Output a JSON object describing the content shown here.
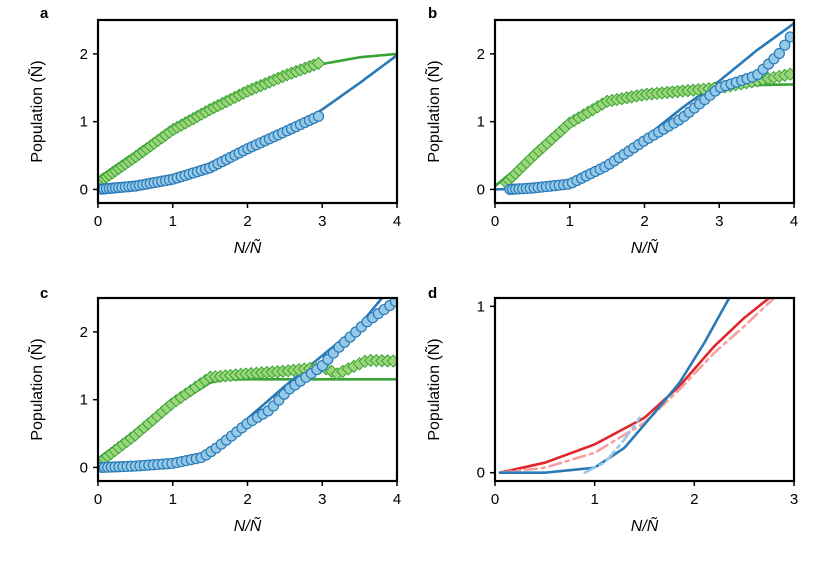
{
  "colors": {
    "blue": "#2a7ab7",
    "blue_marker_fill": "#95c9e8",
    "green": "#3aa336",
    "green_marker_fill": "#9cd67a",
    "red": "#e0272c",
    "red_light": "#f4a19f",
    "blue_light": "#9cc8e7"
  },
  "chart_data": [
    {
      "panel": "a",
      "type": "scatter",
      "xlabel": "N/Ñ",
      "ylabel": "Population (Ñ)",
      "xlim": [
        0,
        4
      ],
      "ylim": [
        -0.2,
        2.5
      ],
      "xticks": [
        "0",
        "1",
        "2",
        "3",
        "4"
      ],
      "yticks": [
        "0",
        "1",
        "2"
      ],
      "series": [
        {
          "kind": "line",
          "color": "green",
          "points": [
            [
              0.0,
              0.05
            ],
            [
              0.5,
              0.45
            ],
            [
              1.0,
              0.85
            ],
            [
              1.5,
              1.22
            ],
            [
              2.0,
              1.5
            ],
            [
              2.5,
              1.7
            ],
            [
              3.0,
              1.85
            ],
            [
              3.5,
              1.95
            ],
            [
              4.0,
              2.0
            ]
          ]
        },
        {
          "kind": "line",
          "color": "blue",
          "points": [
            [
              0.0,
              0.0
            ],
            [
              0.5,
              0.05
            ],
            [
              1.0,
              0.15
            ],
            [
              1.5,
              0.32
            ],
            [
              2.0,
              0.55
            ],
            [
              2.5,
              0.82
            ],
            [
              3.0,
              1.18
            ],
            [
              3.5,
              1.57
            ],
            [
              4.0,
              1.98
            ]
          ]
        },
        {
          "kind": "markers",
          "marker": "diamond",
          "color": "green",
          "x_range": [
            0.05,
            2.95
          ],
          "count": 56,
          "values": [
            [
              0.0,
              0.1
            ],
            [
              0.5,
              0.48
            ],
            [
              1.0,
              0.88
            ],
            [
              1.5,
              1.18
            ],
            [
              2.0,
              1.45
            ],
            [
              2.5,
              1.68
            ],
            [
              2.95,
              1.86
            ]
          ]
        },
        {
          "kind": "markers",
          "marker": "circle",
          "color": "blue",
          "x_range": [
            0.05,
            2.95
          ],
          "count": 56,
          "values": [
            [
              0.0,
              0.0
            ],
            [
              0.5,
              0.05
            ],
            [
              1.0,
              0.15
            ],
            [
              1.5,
              0.32
            ],
            [
              2.0,
              0.6
            ],
            [
              2.5,
              0.85
            ],
            [
              2.95,
              1.08
            ]
          ]
        }
      ]
    },
    {
      "panel": "b",
      "type": "scatter",
      "xlabel": "N/Ñ",
      "ylabel": "Population (Ñ)",
      "xlim": [
        0,
        4
      ],
      "ylim": [
        -0.2,
        2.5
      ],
      "xticks": [
        "0",
        "1",
        "2",
        "3",
        "4"
      ],
      "yticks": [
        "0",
        "1",
        "2"
      ],
      "series": [
        {
          "kind": "line",
          "color": "green",
          "points": [
            [
              0.0,
              0.05
            ],
            [
              0.5,
              0.5
            ],
            [
              1.0,
              0.95
            ],
            [
              1.5,
              1.3
            ],
            [
              2.0,
              1.45
            ],
            [
              2.5,
              1.5
            ],
            [
              3.0,
              1.53
            ],
            [
              3.5,
              1.54
            ],
            [
              4.0,
              1.55
            ]
          ]
        },
        {
          "kind": "line",
          "color": "blue",
          "points": [
            [
              0.0,
              0.0
            ],
            [
              0.5,
              0.02
            ],
            [
              1.0,
              0.1
            ],
            [
              1.5,
              0.33
            ],
            [
              2.0,
              0.76
            ],
            [
              2.5,
              1.2
            ],
            [
              3.0,
              1.6
            ],
            [
              3.5,
              2.05
            ],
            [
              4.0,
              2.45
            ]
          ]
        },
        {
          "kind": "markers",
          "marker": "diamond",
          "color": "green",
          "x_range": [
            0.15,
            3.95
          ],
          "count": 60,
          "values": [
            [
              0.15,
              0.1
            ],
            [
              0.5,
              0.48
            ],
            [
              1.0,
              0.98
            ],
            [
              1.5,
              1.3
            ],
            [
              2.0,
              1.4
            ],
            [
              2.5,
              1.45
            ],
            [
              3.0,
              1.5
            ],
            [
              3.5,
              1.6
            ],
            [
              3.95,
              1.7
            ]
          ]
        },
        {
          "kind": "markers",
          "marker": "circle",
          "color": "blue",
          "x_range": [
            0.2,
            3.95
          ],
          "count": 60,
          "values": [
            [
              0.2,
              0.0
            ],
            [
              0.5,
              0.02
            ],
            [
              1.0,
              0.08
            ],
            [
              1.5,
              0.35
            ],
            [
              2.0,
              0.72
            ],
            [
              2.5,
              1.05
            ],
            [
              3.0,
              1.5
            ],
            [
              3.5,
              1.68
            ],
            [
              3.8,
              2.0
            ],
            [
              3.95,
              2.25
            ]
          ]
        }
      ]
    },
    {
      "panel": "c",
      "type": "scatter",
      "xlabel": "N/Ñ",
      "ylabel": "Population (Ñ)",
      "xlim": [
        0,
        4
      ],
      "ylim": [
        -0.2,
        2.5
      ],
      "xticks": [
        "0",
        "1",
        "2",
        "3",
        "4"
      ],
      "yticks": [
        "0",
        "1",
        "2"
      ],
      "series": [
        {
          "kind": "line",
          "color": "green",
          "points": [
            [
              0.0,
              0.05
            ],
            [
              0.5,
              0.45
            ],
            [
              1.0,
              0.9
            ],
            [
              1.5,
              1.25
            ],
            [
              1.7,
              1.3
            ],
            [
              2.5,
              1.3
            ],
            [
              4.0,
              1.3
            ]
          ]
        },
        {
          "kind": "line",
          "color": "blue",
          "points": [
            [
              0.0,
              0.0
            ],
            [
              0.5,
              0.01
            ],
            [
              1.0,
              0.05
            ],
            [
              1.3,
              0.12
            ],
            [
              1.6,
              0.33
            ],
            [
              2.0,
              0.72
            ],
            [
              2.5,
              1.2
            ],
            [
              3.0,
              1.65
            ],
            [
              3.5,
              2.1
            ],
            [
              3.8,
              2.5
            ]
          ]
        },
        {
          "kind": "markers",
          "marker": "diamond",
          "color": "green",
          "x_range": [
            0.05,
            3.95
          ],
          "count": 60,
          "values": [
            [
              0.05,
              0.1
            ],
            [
              0.5,
              0.48
            ],
            [
              1.0,
              0.95
            ],
            [
              1.5,
              1.33
            ],
            [
              2.0,
              1.38
            ],
            [
              2.5,
              1.42
            ],
            [
              3.0,
              1.48
            ],
            [
              3.2,
              1.38
            ],
            [
              3.6,
              1.58
            ],
            [
              3.95,
              1.57
            ]
          ]
        },
        {
          "kind": "markers",
          "marker": "circle",
          "color": "blue",
          "x_range": [
            0.05,
            3.98
          ],
          "count": 60,
          "values": [
            [
              0.05,
              0.0
            ],
            [
              0.5,
              0.02
            ],
            [
              1.0,
              0.06
            ],
            [
              1.4,
              0.15
            ],
            [
              1.6,
              0.3
            ],
            [
              2.0,
              0.65
            ],
            [
              2.3,
              0.85
            ],
            [
              2.55,
              1.15
            ],
            [
              3.0,
              1.5
            ],
            [
              3.2,
              1.75
            ],
            [
              3.6,
              2.15
            ],
            [
              3.98,
              2.45
            ]
          ]
        }
      ]
    },
    {
      "panel": "d",
      "type": "line",
      "xlabel": "N/Ñ",
      "ylabel": "Population (Ñ)",
      "xlim": [
        0,
        3
      ],
      "ylim": [
        -0.05,
        1.05
      ],
      "xticks": [
        "0",
        "1",
        "2",
        "3"
      ],
      "yticks": [
        "0",
        "1"
      ],
      "series": [
        {
          "kind": "line",
          "color": "red",
          "style": "solid",
          "points": [
            [
              0.05,
              0.0
            ],
            [
              0.5,
              0.06
            ],
            [
              1.0,
              0.17
            ],
            [
              1.5,
              0.33
            ],
            [
              1.85,
              0.52
            ],
            [
              2.2,
              0.76
            ],
            [
              2.5,
              0.93
            ],
            [
              2.75,
              1.05
            ]
          ]
        },
        {
          "kind": "line",
          "color": "red_light",
          "style": "dashdot",
          "points": [
            [
              0.05,
              0.0
            ],
            [
              0.5,
              0.03
            ],
            [
              1.0,
              0.12
            ],
            [
              1.5,
              0.3
            ],
            [
              1.85,
              0.5
            ],
            [
              2.2,
              0.72
            ],
            [
              2.5,
              0.88
            ],
            [
              2.8,
              1.05
            ]
          ]
        },
        {
          "kind": "line",
          "color": "blue",
          "style": "solid",
          "points": [
            [
              0.05,
              0.0
            ],
            [
              0.5,
              0.0
            ],
            [
              1.0,
              0.03
            ],
            [
              1.3,
              0.15
            ],
            [
              1.6,
              0.36
            ],
            [
              1.85,
              0.54
            ],
            [
              2.1,
              0.78
            ],
            [
              2.35,
              1.05
            ]
          ]
        },
        {
          "kind": "line",
          "color": "blue_light",
          "style": "dashdot",
          "points": [
            [
              0.9,
              0.0
            ],
            [
              1.1,
              0.06
            ],
            [
              1.3,
              0.2
            ],
            [
              1.45,
              0.33
            ]
          ]
        }
      ]
    }
  ]
}
